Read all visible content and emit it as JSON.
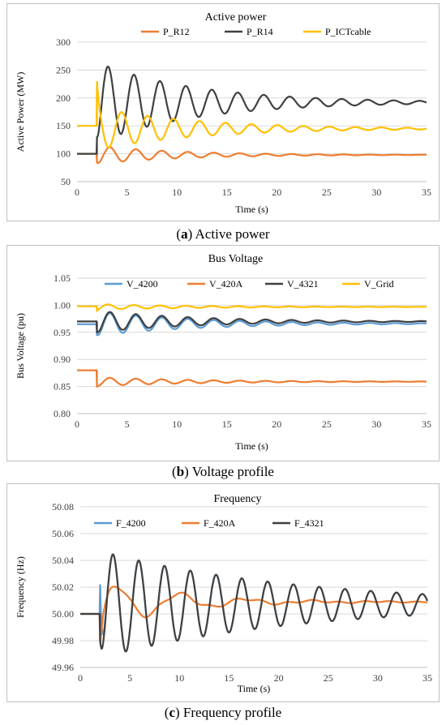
{
  "colors": {
    "orange": "#ed7d31",
    "dark": "#404040",
    "yellow": "#ffc000",
    "blue": "#5b9bd5"
  },
  "chart_data": [
    {
      "type": "line",
      "title": "Active power",
      "xlabel": "Time (s)",
      "ylabel": "Active Power (MW)",
      "xlim": [
        0,
        35
      ],
      "ylim": [
        50,
        300
      ],
      "xticks": [
        0,
        5,
        10,
        15,
        20,
        25,
        30,
        35
      ],
      "yticks": [
        50,
        100,
        150,
        200,
        250,
        300
      ],
      "tick_format": "int",
      "grid": true,
      "legend_position": "top",
      "series": [
        {
          "name": "P_R12",
          "color": "#ed7d31",
          "pre": 100,
          "x0": 2,
          "jump": 84,
          "final": 98,
          "amp": 16,
          "period": 2.6,
          "decay": 0.12,
          "phase": 3.14
        },
        {
          "name": "P_R14",
          "color": "#404040",
          "pre": 100,
          "x0": 2,
          "jump": 130,
          "final": 192,
          "amp": 72,
          "period": 2.6,
          "decay": 0.1,
          "phase": 3.6
        },
        {
          "name": "P_ICTcable",
          "color": "#ffc000",
          "pre": 150,
          "x0": 2,
          "jump": 230,
          "final": 145,
          "amp": 38,
          "period": 2.6,
          "decay": 0.1,
          "phase": 0.3
        }
      ]
    },
    {
      "type": "line",
      "title": "Bus Voltage",
      "xlabel": "Time (s)",
      "ylabel": "Bus Voltage (pu)",
      "xlim": [
        0,
        35
      ],
      "ylim": [
        0.8,
        1.05
      ],
      "xticks": [
        0,
        5,
        10,
        15,
        20,
        25,
        30,
        35
      ],
      "yticks": [
        0.8,
        0.85,
        0.9,
        0.95,
        1.0,
        1.05
      ],
      "tick_format": "2dp",
      "grid": true,
      "legend_position": "top",
      "series": [
        {
          "name": "V_4200",
          "color": "#5b9bd5",
          "pre": 0.965,
          "x0": 2,
          "jump": 0.945,
          "final": 0.966,
          "amp": 0.022,
          "period": 2.6,
          "decay": 0.1,
          "phase": 3.14
        },
        {
          "name": "V_420A",
          "color": "#ed7d31",
          "pre": 0.88,
          "x0": 2,
          "jump": 0.85,
          "final": 0.859,
          "amp": 0.008,
          "period": 2.6,
          "decay": 0.1,
          "phase": 3.14
        },
        {
          "name": "V_4321",
          "color": "#404040",
          "pre": 0.97,
          "x0": 2,
          "jump": 0.95,
          "final": 0.97,
          "amp": 0.02,
          "period": 2.6,
          "decay": 0.1,
          "phase": 3.14
        },
        {
          "name": "V_Grid",
          "color": "#ffc000",
          "pre": 0.998,
          "x0": 2,
          "jump": 0.99,
          "final": 0.997,
          "amp": 0.005,
          "period": 2.6,
          "decay": 0.1,
          "phase": 3.6
        }
      ]
    },
    {
      "type": "line",
      "title": "Frequency",
      "xlabel": "Time (s)",
      "ylabel": "Frequency (Hz)",
      "xlim": [
        0,
        35
      ],
      "ylim": [
        49.96,
        50.08
      ],
      "xticks": [
        0,
        5,
        10,
        15,
        20,
        25,
        30,
        35
      ],
      "yticks": [
        49.96,
        49.98,
        50.0,
        50.02,
        50.04,
        50.06,
        50.08
      ],
      "tick_format": "2dp",
      "grid": true,
      "legend_position": "top",
      "series": [
        {
          "name": "F_4200",
          "color": "#5b9bd5",
          "pre": 50.0,
          "x0": 2,
          "jump": 50.022,
          "final": 50.007,
          "amp": 0.04,
          "period": 2.6,
          "decay": 0.05,
          "phase": 3.14
        },
        {
          "name": "F_420A",
          "color": "#ed7d31",
          "pre": 50.0,
          "x0": 2,
          "jump": 49.978,
          "final": 50.009,
          "amp": 0.02,
          "period": 6.0,
          "decay": 0.15,
          "phase": 3.14,
          "mode": "slow"
        },
        {
          "name": "F_4321",
          "color": "#404040",
          "pre": 50.0,
          "x0": 2,
          "jump": 49.98,
          "final": 50.007,
          "amp": 0.04,
          "period": 2.6,
          "decay": 0.05,
          "phase": 3.14
        }
      ]
    }
  ],
  "captions": [
    {
      "letter": "a",
      "text": "Active power"
    },
    {
      "letter": "b",
      "text": "Voltage profile"
    },
    {
      "letter": "c",
      "text": "Frequency profile"
    }
  ]
}
